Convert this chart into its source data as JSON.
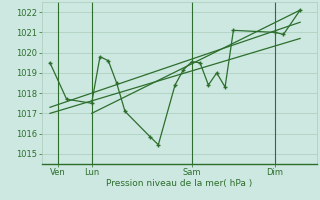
{
  "bg_color": "#cce8e0",
  "grid_color": "#aaccbc",
  "line_color": "#2d6e2d",
  "marker_color": "#2d6e2d",
  "ylabel_values": [
    1015,
    1016,
    1017,
    1018,
    1019,
    1020,
    1021,
    1022
  ],
  "ylim": [
    1014.5,
    1022.5
  ],
  "xlabel": "Pression niveau de la mer( hPa )",
  "xtick_labels": [
    "Ven",
    "Lun",
    "Sam",
    "Dim"
  ],
  "xtick_positions": [
    1,
    3,
    9,
    14
  ],
  "vline_positions": [
    1,
    3,
    9,
    14
  ],
  "series1_x": [
    0.5,
    1.5,
    3,
    3.5,
    4,
    4.5,
    5,
    6.5,
    7,
    8,
    8.5,
    9,
    9.5,
    10,
    10.5,
    11,
    11.5,
    14,
    14.5,
    15.5
  ],
  "series1_y": [
    1019.5,
    1017.7,
    1017.5,
    1019.8,
    1019.6,
    1018.5,
    1017.1,
    1015.85,
    1015.45,
    1018.4,
    1019.15,
    1019.55,
    1019.5,
    1018.4,
    1019.0,
    1018.3,
    1021.1,
    1021.0,
    1020.9,
    1022.1
  ],
  "trend1_x": [
    0.5,
    15.5
  ],
  "trend1_y": [
    1017.0,
    1020.7
  ],
  "trend2_x": [
    0.5,
    15.5
  ],
  "trend2_y": [
    1017.3,
    1021.5
  ],
  "trend3_x": [
    3,
    15.5
  ],
  "trend3_y": [
    1017.0,
    1022.1
  ],
  "xlim": [
    0,
    16.5
  ],
  "figsize": [
    3.2,
    2.0
  ],
  "dpi": 100
}
